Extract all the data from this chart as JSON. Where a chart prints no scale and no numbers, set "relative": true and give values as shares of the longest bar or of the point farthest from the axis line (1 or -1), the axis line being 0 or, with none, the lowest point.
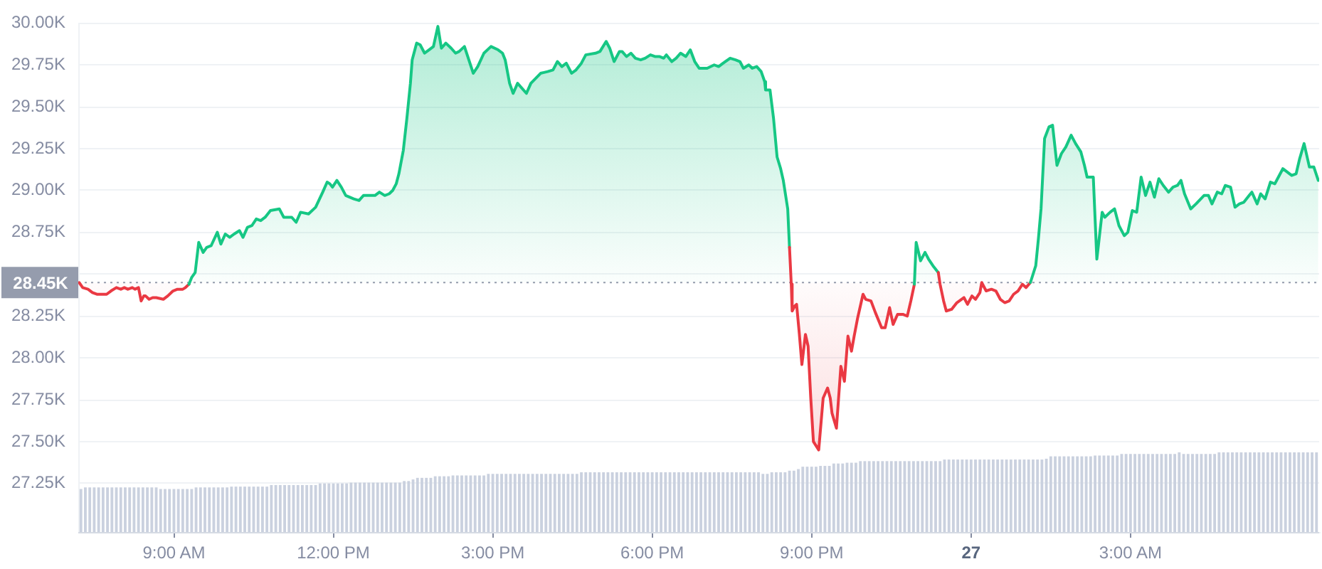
{
  "chart_data": [
    {
      "type": "area",
      "tick_labels": "y",
      "x": [
        "--04-26T07:13",
        "--04-26T07:17",
        "--04-26T07:23",
        "--04-26T07:28",
        "--04-26T07:33",
        "--04-26T07:38",
        "--04-26T07:44",
        "--04-26T07:49",
        "--04-26T07:55",
        "--04-26T08:00",
        "--04-26T08:04",
        "--04-26T08:08",
        "--04-26T08:13",
        "--04-26T08:16",
        "--04-26T08:20",
        "--04-26T08:23",
        "--04-26T08:26",
        "--04-26T08:28",
        "--04-26T08:32",
        "--04-26T08:36",
        "--04-26T08:40",
        "--04-26T08:48",
        "--04-26T08:53",
        "--04-26T08:59",
        "--04-26T09:04",
        "--04-26T09:10",
        "--04-26T09:13",
        "--04-26T09:17",
        "--04-26T09:20",
        "--04-26T09:24",
        "--04-26T09:28",
        "--04-26T09:33",
        "--04-26T09:37",
        "--04-26T09:42",
        "--04-26T09:49",
        "--04-26T09:53",
        "--04-26T09:58",
        "--04-26T10:03",
        "--04-26T10:08",
        "--04-26T10:14",
        "--04-26T10:18",
        "--04-26T10:23",
        "--04-26T10:28",
        "--04-26T10:33",
        "--04-26T10:38",
        "--04-26T10:43",
        "--04-26T10:49",
        "--04-26T10:59",
        "--04-26T11:04",
        "--04-26T11:13",
        "--04-26T11:18",
        "--04-26T11:23",
        "--04-26T11:32",
        "--04-26T11:40",
        "--04-26T11:48",
        "--04-26T11:53",
        "--04-26T11:56",
        "--04-26T11:59",
        "--04-26T12:04",
        "--04-26T12:09",
        "--04-26T12:14",
        "--04-26T12:23",
        "--04-26T12:29",
        "--04-26T12:34",
        "--04-26T12:47",
        "--04-26T12:52",
        "--04-26T12:58",
        "--04-26T13:03",
        "--04-26T13:07",
        "--04-26T13:11",
        "--04-26T13:14",
        "--04-26T13:19",
        "--04-26T13:23",
        "--04-26T13:27",
        "--04-26T13:29",
        "--04-26T13:34",
        "--04-26T13:38",
        "--04-26T13:43",
        "--04-26T13:48",
        "--04-26T13:53",
        "--04-26T13:58",
        "--04-26T14:02",
        "--04-26T14:07",
        "--04-26T14:13",
        "--04-26T14:18",
        "--04-26T14:22",
        "--04-26T14:28",
        "--04-26T14:38",
        "--04-26T14:43",
        "--04-26T14:50",
        "--04-26T14:58",
        "--04-26T15:06",
        "--04-26T15:11",
        "--04-26T15:14",
        "--04-26T15:19",
        "--04-26T15:23",
        "--04-26T15:28",
        "--04-26T15:38",
        "--04-26T15:43",
        "--04-26T15:54",
        "--04-26T16:02",
        "--04-26T16:08",
        "--04-26T16:13",
        "--04-26T16:18",
        "--04-26T16:23",
        "--04-26T16:29",
        "--04-26T16:34",
        "--04-26T16:40",
        "--04-26T16:45",
        "--04-26T16:56",
        "--04-26T17:01",
        "--04-26T17:08",
        "--04-26T17:12",
        "--04-26T17:17",
        "--04-26T17:23",
        "--04-26T17:26",
        "--04-26T17:31",
        "--04-26T17:36",
        "--04-26T17:41",
        "--04-26T17:47",
        "--04-26T17:52",
        "--04-26T17:58",
        "--04-26T18:03",
        "--04-26T18:08",
        "--04-26T18:13",
        "--04-26T18:16",
        "--04-26T18:22",
        "--04-26T18:27",
        "--04-26T18:32",
        "--04-26T18:38",
        "--04-26T18:43",
        "--04-26T18:48",
        "--04-26T18:53",
        "--04-26T19:02",
        "--04-26T19:10",
        "--04-26T19:15",
        "--04-26T19:20",
        "--04-26T19:28",
        "--04-26T19:34",
        "--04-26T19:39",
        "--04-26T19:43",
        "--04-26T19:49",
        "--04-26T19:53",
        "--04-26T19:58",
        "--04-26T20:03",
        "--04-26T20:07",
        "--04-26T20:08",
        "--04-26T20:13",
        "--04-26T20:17",
        "--04-26T20:21",
        "--04-26T20:25",
        "--04-26T20:28",
        "--04-26T20:33",
        "--04-26T20:35",
        "--04-26T20:37",
        "--04-26T20:38",
        "--04-26T20:41",
        "--04-26T20:43",
        "--04-26T20:46",
        "--04-26T20:49",
        "--04-26T20:53",
        "--04-26T20:56",
        "--04-26T20:59",
        "--04-26T21:02",
        "--04-26T21:08",
        "--04-26T21:13",
        "--04-26T21:18",
        "--04-26T21:21",
        "--04-26T21:23",
        "--04-26T21:28",
        "--04-26T21:33",
        "--04-26T21:37",
        "--04-26T21:41",
        "--04-26T21:45",
        "--04-26T21:48",
        "--04-26T21:52",
        "--04-26T21:58",
        "--04-26T22:01",
        "--04-26T22:07",
        "--04-26T22:12",
        "--04-26T22:19",
        "--04-26T22:23",
        "--04-26T22:28",
        "--04-26T22:32",
        "--04-26T22:37",
        "--04-26T22:43",
        "--04-26T22:48",
        "--04-26T22:52",
        "--04-26T22:56",
        "--04-26T22:58",
        "--04-26T23:03",
        "--04-26T23:08",
        "--04-26T23:12",
        "--04-26T23:17",
        "--04-26T23:23",
        "--04-26T23:25",
        "--04-26T23:29",
        "--04-26T23:32",
        "--04-26T23:38",
        "--04-26T23:44",
        "--04-26T23:52",
        "--04-26T23:56",
        "--04-27T00:01",
        "--04-27T00:05",
        "--04-27T00:10",
        "--04-27T00:12",
        "--04-27T00:17",
        "--04-27T00:23",
        "--04-27T00:28",
        "--04-27T00:33",
        "--04-27T00:38",
        "--04-27T00:43",
        "--04-27T00:48",
        "--04-27T00:53",
        "--04-27T00:58",
        "--04-27T01:02",
        "--04-27T01:07",
        "--04-27T01:13",
        "--04-27T01:16",
        "--04-27T01:19",
        "--04-27T01:23",
        "--04-27T01:28",
        "--04-27T01:32",
        "--04-27T01:37",
        "--04-27T01:42",
        "--04-27T01:47",
        "--04-27T01:53",
        "--04-27T01:58",
        "--04-27T02:04",
        "--04-27T02:08",
        "--04-27T02:11",
        "--04-27T02:18",
        "--04-27T02:22",
        "--04-27T02:28",
        "--04-27T02:31",
        "--04-27T02:37",
        "--04-27T02:42",
        "--04-27T02:47",
        "--04-27T02:53",
        "--04-27T02:57",
        "--04-27T03:02",
        "--04-27T03:07",
        "--04-27T03:12",
        "--04-27T03:17",
        "--04-27T03:22",
        "--04-27T03:27",
        "--04-27T03:32",
        "--04-27T03:37",
        "--04-27T03:43",
        "--04-27T03:48",
        "--04-27T03:53",
        "--04-27T03:57",
        "--04-27T04:01",
        "--04-27T04:08",
        "--04-27T04:14",
        "--04-27T04:23",
        "--04-27T04:28",
        "--04-27T04:32",
        "--04-27T04:38",
        "--04-27T04:43",
        "--04-27T04:47",
        "--04-27T04:53",
        "--04-27T04:58",
        "--04-27T05:03",
        "--04-27T05:08",
        "--04-27T05:14",
        "--04-27T05:17",
        "--04-27T05:23",
        "--04-27T05:27",
        "--04-27T05:32",
        "--04-27T05:38",
        "--04-27T05:43",
        "--04-27T05:52",
        "--04-27T06:02",
        "--04-27T06:07",
        "--04-27T06:11",
        "--04-27T06:16",
        "--04-27T06:22",
        "--04-27T06:27",
        "--04-27T06:32"
      ],
      "values": [
        28450,
        28420,
        28410,
        28390,
        28380,
        28380,
        28380,
        28400,
        28420,
        28410,
        28420,
        28410,
        28420,
        28410,
        28420,
        28340,
        28370,
        28370,
        28350,
        28360,
        28360,
        28350,
        28370,
        28400,
        28410,
        28410,
        28420,
        28440,
        28480,
        28510,
        28690,
        28630,
        28660,
        28670,
        28750,
        28680,
        28740,
        28720,
        28740,
        28760,
        28720,
        28780,
        28790,
        28830,
        28820,
        28840,
        28880,
        28890,
        28840,
        28840,
        28810,
        28870,
        28860,
        28900,
        28990,
        29050,
        29040,
        29020,
        29060,
        29020,
        28970,
        28950,
        28940,
        28970,
        28970,
        28990,
        28970,
        28980,
        29000,
        29040,
        29100,
        29240,
        29430,
        29640,
        29780,
        29880,
        29870,
        29820,
        29840,
        29860,
        29980,
        29850,
        29880,
        29850,
        29820,
        29830,
        29860,
        29700,
        29740,
        29820,
        29860,
        29840,
        29820,
        29780,
        29640,
        29580,
        29640,
        29580,
        29640,
        29700,
        29710,
        29720,
        29770,
        29740,
        29760,
        29700,
        29720,
        29760,
        29810,
        29820,
        29830,
        29890,
        29850,
        29770,
        29830,
        29830,
        29800,
        29820,
        29790,
        29780,
        29790,
        29810,
        29800,
        29800,
        29790,
        29810,
        29770,
        29790,
        29820,
        29800,
        29840,
        29770,
        29730,
        29730,
        29750,
        29740,
        29760,
        29790,
        29780,
        29770,
        29730,
        29750,
        29730,
        29740,
        29710,
        29650,
        29600,
        29600,
        29430,
        29200,
        29130,
        29060,
        28890,
        28660,
        28440,
        28280,
        28310,
        28320,
        28150,
        27960,
        28140,
        28070,
        27760,
        27500,
        27450,
        27760,
        27820,
        27760,
        27670,
        27580,
        27950,
        27860,
        28130,
        28040,
        28130,
        28240,
        28380,
        28350,
        28340,
        28270,
        28180,
        28180,
        28300,
        28200,
        28260,
        28260,
        28250,
        28340,
        28440,
        28690,
        28580,
        28630,
        28590,
        28550,
        28510,
        28440,
        28340,
        28280,
        28290,
        28330,
        28360,
        28320,
        28370,
        28350,
        28390,
        28450,
        28400,
        28410,
        28400,
        28350,
        28330,
        28340,
        28380,
        28400,
        28440,
        28420,
        28450,
        28550,
        28710,
        28890,
        29310,
        29380,
        29390,
        29150,
        29220,
        29260,
        29330,
        29280,
        29230,
        29150,
        29080,
        29080,
        28590,
        28870,
        28840,
        28870,
        28890,
        28790,
        28730,
        28750,
        28880,
        28870,
        29080,
        28970,
        29050,
        28960,
        29070,
        29030,
        28990,
        29020,
        29030,
        29060,
        28980,
        28890,
        28920,
        28970,
        28970,
        28920,
        28990,
        28980,
        29030,
        29020,
        28900,
        28920,
        28930,
        28970,
        28990,
        28920,
        28980,
        28950,
        29050,
        29040,
        29130,
        29090,
        29100,
        29190,
        29280,
        29140,
        29140,
        29060
      ],
      "colors": [
        "#ea3943",
        "#ea3943",
        "#ea3943",
        "#ea3943",
        "#ea3943",
        "#ea3943",
        "#ea3943",
        "#ea3943",
        "#ea3943",
        "#ea3943",
        "#ea3943",
        "#ea3943",
        "#ea3943",
        "#ea3943",
        "#ea3943",
        "#ea3943",
        "#ea3943",
        "#ea3943",
        "#ea3943",
        "#ea3943",
        "#ea3943",
        "#ea3943",
        "#ea3943",
        "#ea3943",
        "#ea3943",
        "#ea3943",
        "#ea3943",
        "#ea3943",
        "#16c784",
        "#16c784",
        "#16c784",
        "#16c784",
        "#16c784",
        "#16c784",
        "#16c784",
        "#16c784",
        "#16c784",
        "#16c784",
        "#16c784",
        "#16c784",
        "#16c784",
        "#16c784",
        "#16c784",
        "#16c784",
        "#16c784",
        "#16c784",
        "#16c784",
        "#16c784",
        "#16c784",
        "#16c784",
        "#16c784",
        "#16c784",
        "#16c784",
        "#16c784",
        "#16c784",
        "#16c784",
        "#16c784",
        "#16c784",
        "#16c784",
        "#16c784",
        "#16c784",
        "#16c784",
        "#16c784",
        "#16c784",
        "#16c784",
        "#16c784",
        "#16c784",
        "#16c784",
        "#16c784",
        "#16c784",
        "#16c784",
        "#16c784",
        "#16c784",
        "#16c784",
        "#16c784",
        "#16c784",
        "#16c784",
        "#16c784",
        "#16c784",
        "#16c784",
        "#16c784",
        "#16c784",
        "#16c784",
        "#16c784",
        "#16c784",
        "#16c784",
        "#16c784",
        "#16c784",
        "#16c784",
        "#16c784",
        "#16c784",
        "#16c784",
        "#16c784",
        "#16c784",
        "#16c784",
        "#16c784",
        "#16c784",
        "#16c784",
        "#16c784",
        "#16c784",
        "#16c784",
        "#16c784",
        "#16c784",
        "#16c784",
        "#16c784",
        "#16c784",
        "#16c784",
        "#16c784",
        "#16c784",
        "#16c784",
        "#16c784",
        "#16c784",
        "#16c784",
        "#16c784",
        "#16c784",
        "#16c784",
        "#16c784",
        "#16c784",
        "#16c784",
        "#16c784",
        "#16c784",
        "#16c784",
        "#16c784",
        "#16c784",
        "#16c784",
        "#16c784",
        "#16c784",
        "#16c784",
        "#16c784",
        "#16c784",
        "#16c784",
        "#16c784",
        "#16c784",
        "#16c784",
        "#16c784",
        "#16c784",
        "#16c784",
        "#16c784",
        "#16c784",
        "#16c784",
        "#16c784",
        "#16c784",
        "#16c784",
        "#16c784",
        "#16c784",
        "#16c784",
        "#16c784",
        "#16c784",
        "#16c784",
        "#16c784",
        "#16c784",
        "#16c784",
        "#16c784",
        "#16c784",
        "#ea3943",
        "#ea3943",
        "#ea3943",
        "#ea3943",
        "#ea3943",
        "#ea3943",
        "#ea3943",
        "#ea3943",
        "#ea3943",
        "#ea3943",
        "#ea3943",
        "#ea3943",
        "#ea3943",
        "#ea3943",
        "#ea3943",
        "#ea3943",
        "#ea3943",
        "#ea3943",
        "#ea3943",
        "#ea3943",
        "#ea3943",
        "#ea3943",
        "#ea3943",
        "#ea3943",
        "#ea3943",
        "#ea3943",
        "#ea3943",
        "#ea3943",
        "#ea3943",
        "#ea3943",
        "#ea3943",
        "#ea3943",
        "#ea3943",
        "#ea3943",
        "#ea3943",
        "#16c784",
        "#16c784",
        "#16c784",
        "#16c784",
        "#16c784",
        "#16c784",
        "#ea3943",
        "#ea3943",
        "#ea3943",
        "#ea3943",
        "#ea3943",
        "#ea3943",
        "#ea3943",
        "#ea3943",
        "#ea3943",
        "#ea3943",
        "#ea3943",
        "#ea3943",
        "#ea3943",
        "#ea3943",
        "#ea3943",
        "#ea3943",
        "#ea3943",
        "#ea3943",
        "#ea3943",
        "#ea3943",
        "#ea3943",
        "#ea3943",
        "#16c784",
        "#16c784",
        "#16c784",
        "#16c784",
        "#16c784",
        "#16c784",
        "#16c784",
        "#16c784",
        "#16c784",
        "#16c784",
        "#16c784",
        "#16c784",
        "#16c784",
        "#16c784",
        "#16c784",
        "#16c784",
        "#16c784",
        "#16c784",
        "#16c784",
        "#16c784",
        "#16c784",
        "#16c784",
        "#16c784",
        "#16c784",
        "#16c784",
        "#16c784",
        "#16c784",
        "#16c784",
        "#16c784",
        "#16c784",
        "#16c784",
        "#16c784",
        "#16c784",
        "#16c784",
        "#16c784",
        "#16c784",
        "#16c784",
        "#16c784",
        "#16c784",
        "#16c784",
        "#16c784",
        "#16c784",
        "#16c784",
        "#16c784",
        "#16c784",
        "#16c784",
        "#16c784",
        "#16c784",
        "#16c784",
        "#16c784",
        "#16c784",
        "#16c784",
        "#16c784",
        "#16c784",
        "#16c784",
        "#16c784",
        "#16c784",
        "#16c784",
        "#16c784",
        "#16c784",
        "#16c784",
        "#16c784",
        "#16c784"
      ],
      "xlim": [
        "--04-26T07:12",
        "--04-27T06:33"
      ],
      "ylim": [
        26960,
        30000
      ],
      "yticks": [
        {
          "value": 27250,
          "label": "27.25K"
        },
        {
          "value": 27500,
          "label": "27.50K"
        },
        {
          "value": 27750,
          "label": "27.75K"
        },
        {
          "value": 28000,
          "label": "28.00K"
        },
        {
          "value": 28250,
          "label": "28.25K"
        },
        {
          "value": 28500,
          "label": null
        },
        {
          "value": 28750,
          "label": "28.75K"
        },
        {
          "value": 29000,
          "label": "29.00K"
        },
        {
          "value": 29250,
          "label": "29.25K"
        },
        {
          "value": 29500,
          "label": "29.50K"
        },
        {
          "value": 29750,
          "label": "29.75K"
        },
        {
          "value": 30000,
          "label": "30.00K"
        }
      ],
      "grid": "y",
      "ref_lines": [
        {
          "axis": "y",
          "value": 28450,
          "label": "28.45K",
          "color": "#959cad",
          "line_style": "dotted"
        }
      ]
    },
    {
      "type": "bar",
      "relative": true,
      "color": "#cad1df",
      "xlim": [
        "--04-26T07:12",
        "--04-27T06:33"
      ],
      "xticks": [
        {
          "value": "--04-26T09:00",
          "label": "9:00 AM"
        },
        {
          "value": "--04-26T12:00",
          "label": "12:00 PM"
        },
        {
          "value": "--04-26T15:00",
          "label": "3:00 PM"
        },
        {
          "value": "--04-26T18:00",
          "label": "6:00 PM"
        },
        {
          "value": "--04-26T21:00",
          "label": "9:00 PM"
        },
        {
          "value": "--04-27T00:00",
          "label": "27"
        },
        {
          "value": "--04-27T03:00",
          "label": "3:00 AM"
        }
      ],
      "x": [
        "--04-26T07:15",
        "--04-26T07:20",
        "--04-26T07:25",
        "--04-26T07:30",
        "--04-26T07:35",
        "--04-26T07:40",
        "--04-26T07:45",
        "--04-26T07:50",
        "--04-26T07:55",
        "--04-26T08:00",
        "--04-26T08:05",
        "--04-26T08:10",
        "--04-26T08:15",
        "--04-26T08:20",
        "--04-26T08:25",
        "--04-26T08:30",
        "--04-26T08:35",
        "--04-26T08:40",
        "--04-26T08:45",
        "--04-26T08:50",
        "--04-26T08:55",
        "--04-26T09:00",
        "--04-26T09:05",
        "--04-26T09:10",
        "--04-26T09:15",
        "--04-26T09:20",
        "--04-26T09:25",
        "--04-26T09:30",
        "--04-26T09:35",
        "--04-26T09:40",
        "--04-26T09:45",
        "--04-26T09:50",
        "--04-26T09:55",
        "--04-26T10:00",
        "--04-26T10:05",
        "--04-26T10:10",
        "--04-26T10:15",
        "--04-26T10:20",
        "--04-26T10:25",
        "--04-26T10:30",
        "--04-26T10:35",
        "--04-26T10:40",
        "--04-26T10:45",
        "--04-26T10:50",
        "--04-26T10:55",
        "--04-26T11:00",
        "--04-26T11:05",
        "--04-26T11:10",
        "--04-26T11:15",
        "--04-26T11:20",
        "--04-26T11:25",
        "--04-26T11:30",
        "--04-26T11:35",
        "--04-26T11:40",
        "--04-26T11:45",
        "--04-26T11:50",
        "--04-26T11:55",
        "--04-26T12:00",
        "--04-26T12:05",
        "--04-26T12:10",
        "--04-26T12:15",
        "--04-26T12:20",
        "--04-26T12:25",
        "--04-26T12:30",
        "--04-26T12:35",
        "--04-26T12:40",
        "--04-26T12:45",
        "--04-26T12:50",
        "--04-26T12:55",
        "--04-26T13:00",
        "--04-26T13:05",
        "--04-26T13:10",
        "--04-26T13:15",
        "--04-26T13:20",
        "--04-26T13:25",
        "--04-26T13:30",
        "--04-26T13:35",
        "--04-26T13:40",
        "--04-26T13:45",
        "--04-26T13:50",
        "--04-26T13:55",
        "--04-26T14:00",
        "--04-26T14:05",
        "--04-26T14:10",
        "--04-26T14:15",
        "--04-26T14:20",
        "--04-26T14:25",
        "--04-26T14:30",
        "--04-26T14:35",
        "--04-26T14:40",
        "--04-26T14:45",
        "--04-26T14:50",
        "--04-26T14:55",
        "--04-26T15:00",
        "--04-26T15:05",
        "--04-26T15:10",
        "--04-26T15:15",
        "--04-26T15:20",
        "--04-26T15:25",
        "--04-26T15:30",
        "--04-26T15:35",
        "--04-26T15:40",
        "--04-26T15:45",
        "--04-26T15:50",
        "--04-26T15:55",
        "--04-26T16:00",
        "--04-26T16:05",
        "--04-26T16:10",
        "--04-26T16:15",
        "--04-26T16:20",
        "--04-26T16:25",
        "--04-26T16:30",
        "--04-26T16:35",
        "--04-26T16:40",
        "--04-26T16:45",
        "--04-26T16:50",
        "--04-26T16:55",
        "--04-26T17:00",
        "--04-26T17:05",
        "--04-26T17:10",
        "--04-26T17:15",
        "--04-26T17:20",
        "--04-26T17:25",
        "--04-26T17:30",
        "--04-26T17:35",
        "--04-26T17:40",
        "--04-26T17:45",
        "--04-26T17:50",
        "--04-26T17:55",
        "--04-26T18:00",
        "--04-26T18:05",
        "--04-26T18:10",
        "--04-26T18:15",
        "--04-26T18:20",
        "--04-26T18:25",
        "--04-26T18:30",
        "--04-26T18:35",
        "--04-26T18:40",
        "--04-26T18:45",
        "--04-26T18:50",
        "--04-26T18:55",
        "--04-26T19:00",
        "--04-26T19:05",
        "--04-26T19:10",
        "--04-26T19:15",
        "--04-26T19:20",
        "--04-26T19:25",
        "--04-26T19:30",
        "--04-26T19:35",
        "--04-26T19:40",
        "--04-26T19:45",
        "--04-26T19:50",
        "--04-26T19:55",
        "--04-26T20:00",
        "--04-26T20:05",
        "--04-26T20:10",
        "--04-26T20:15",
        "--04-26T20:20",
        "--04-26T20:25",
        "--04-26T20:30",
        "--04-26T20:35",
        "--04-26T20:40",
        "--04-26T20:45",
        "--04-26T20:50",
        "--04-26T20:55",
        "--04-26T21:00",
        "--04-26T21:05",
        "--04-26T21:10",
        "--04-26T21:15",
        "--04-26T21:20",
        "--04-26T21:25",
        "--04-26T21:30",
        "--04-26T21:35",
        "--04-26T21:40",
        "--04-26T21:45",
        "--04-26T21:50",
        "--04-26T21:55",
        "--04-26T22:00",
        "--04-26T22:05",
        "--04-26T22:10",
        "--04-26T22:15",
        "--04-26T22:20",
        "--04-26T22:25",
        "--04-26T22:30",
        "--04-26T22:35",
        "--04-26T22:40",
        "--04-26T22:45",
        "--04-26T22:50",
        "--04-26T22:55",
        "--04-26T23:00",
        "--04-26T23:05",
        "--04-26T23:10",
        "--04-26T23:15",
        "--04-26T23:20",
        "--04-26T23:25",
        "--04-26T23:30",
        "--04-26T23:35",
        "--04-26T23:40",
        "--04-26T23:45",
        "--04-26T23:50",
        "--04-26T23:55",
        "--04-27T00:00",
        "--04-27T00:05",
        "--04-27T00:10",
        "--04-27T00:15",
        "--04-27T00:20",
        "--04-27T00:25",
        "--04-27T00:30",
        "--04-27T00:35",
        "--04-27T00:40",
        "--04-27T00:45",
        "--04-27T00:50",
        "--04-27T00:55",
        "--04-27T01:00",
        "--04-27T01:05",
        "--04-27T01:10",
        "--04-27T01:15",
        "--04-27T01:20",
        "--04-27T01:25",
        "--04-27T01:30",
        "--04-27T01:35",
        "--04-27T01:40",
        "--04-27T01:45",
        "--04-27T01:50",
        "--04-27T01:55",
        "--04-27T02:00",
        "--04-27T02:05",
        "--04-27T02:10",
        "--04-27T02:15",
        "--04-27T02:20",
        "--04-27T02:25",
        "--04-27T02:30",
        "--04-27T02:35",
        "--04-27T02:40",
        "--04-27T02:45",
        "--04-27T02:50",
        "--04-27T02:55",
        "--04-27T03:00",
        "--04-27T03:05",
        "--04-27T03:10",
        "--04-27T03:15",
        "--04-27T03:20",
        "--04-27T03:25",
        "--04-27T03:30",
        "--04-27T03:35",
        "--04-27T03:40",
        "--04-27T03:45",
        "--04-27T03:50",
        "--04-27T03:55",
        "--04-27T04:00",
        "--04-27T04:05",
        "--04-27T04:10",
        "--04-27T04:15",
        "--04-27T04:20",
        "--04-27T04:25",
        "--04-27T04:30",
        "--04-27T04:35",
        "--04-27T04:40",
        "--04-27T04:45",
        "--04-27T04:50",
        "--04-27T04:55",
        "--04-27T05:00",
        "--04-27T05:05",
        "--04-27T05:10",
        "--04-27T05:15",
        "--04-27T05:20",
        "--04-27T05:25",
        "--04-27T05:30",
        "--04-27T05:35",
        "--04-27T05:40",
        "--04-27T05:45",
        "--04-27T05:50",
        "--04-27T05:55",
        "--04-27T06:00",
        "--04-27T06:05",
        "--04-27T06:10",
        "--04-27T06:15",
        "--04-27T06:20",
        "--04-27T06:25",
        "--04-27T06:30"
      ],
      "values": [
        0.54,
        0.56,
        0.56,
        0.56,
        0.56,
        0.56,
        0.56,
        0.56,
        0.56,
        0.56,
        0.56,
        0.56,
        0.56,
        0.56,
        0.56,
        0.56,
        0.56,
        0.56,
        0.54,
        0.54,
        0.54,
        0.54,
        0.54,
        0.54,
        0.54,
        0.54,
        0.56,
        0.56,
        0.56,
        0.56,
        0.56,
        0.56,
        0.56,
        0.56,
        0.57,
        0.57,
        0.57,
        0.57,
        0.57,
        0.57,
        0.57,
        0.57,
        0.57,
        0.59,
        0.59,
        0.59,
        0.59,
        0.59,
        0.59,
        0.59,
        0.59,
        0.59,
        0.59,
        0.59,
        0.61,
        0.61,
        0.61,
        0.61,
        0.61,
        0.61,
        0.61,
        0.62,
        0.62,
        0.62,
        0.62,
        0.62,
        0.62,
        0.62,
        0.62,
        0.62,
        0.62,
        0.62,
        0.62,
        0.64,
        0.64,
        0.66,
        0.68,
        0.68,
        0.68,
        0.68,
        0.7,
        0.7,
        0.7,
        0.7,
        0.71,
        0.71,
        0.71,
        0.71,
        0.71,
        0.71,
        0.71,
        0.71,
        0.73,
        0.73,
        0.73,
        0.73,
        0.73,
        0.73,
        0.73,
        0.73,
        0.73,
        0.73,
        0.73,
        0.73,
        0.73,
        0.73,
        0.73,
        0.73,
        0.73,
        0.73,
        0.73,
        0.73,
        0.73,
        0.75,
        0.75,
        0.75,
        0.75,
        0.75,
        0.75,
        0.75,
        0.75,
        0.75,
        0.75,
        0.75,
        0.75,
        0.75,
        0.75,
        0.75,
        0.75,
        0.75,
        0.75,
        0.75,
        0.75,
        0.75,
        0.75,
        0.75,
        0.75,
        0.75,
        0.75,
        0.75,
        0.75,
        0.75,
        0.75,
        0.75,
        0.75,
        0.75,
        0.75,
        0.75,
        0.75,
        0.75,
        0.75,
        0.75,
        0.75,
        0.75,
        0.73,
        0.73,
        0.75,
        0.75,
        0.75,
        0.75,
        0.77,
        0.77,
        0.79,
        0.82,
        0.82,
        0.82,
        0.82,
        0.83,
        0.83,
        0.83,
        0.86,
        0.86,
        0.86,
        0.87,
        0.87,
        0.87,
        0.89,
        0.89,
        0.89,
        0.89,
        0.89,
        0.89,
        0.89,
        0.89,
        0.89,
        0.89,
        0.89,
        0.89,
        0.89,
        0.89,
        0.89,
        0.89,
        0.89,
        0.89,
        0.89,
        0.91,
        0.91,
        0.91,
        0.91,
        0.91,
        0.91,
        0.91,
        0.91,
        0.91,
        0.91,
        0.91,
        0.91,
        0.91,
        0.91,
        0.91,
        0.91,
        0.91,
        0.91,
        0.91,
        0.91,
        0.91,
        0.91,
        0.91,
        0.92,
        0.95,
        0.95,
        0.95,
        0.95,
        0.95,
        0.95,
        0.95,
        0.95,
        0.95,
        0.95,
        0.96,
        0.96,
        0.96,
        0.96,
        0.96,
        0.96,
        0.98,
        0.98,
        0.98,
        0.98,
        0.98,
        0.98,
        0.98,
        0.98,
        0.98,
        0.98,
        0.98,
        0.98,
        0.98,
        1,
        0.98,
        0.98,
        0.98,
        0.98,
        0.98,
        0.98,
        0.98,
        0.98,
        1,
        1,
        1,
        1,
        1,
        1,
        1,
        1,
        1,
        1,
        1,
        1,
        1,
        1,
        1,
        1,
        1,
        1,
        1,
        1,
        1,
        1,
        1
      ]
    }
  ]
}
